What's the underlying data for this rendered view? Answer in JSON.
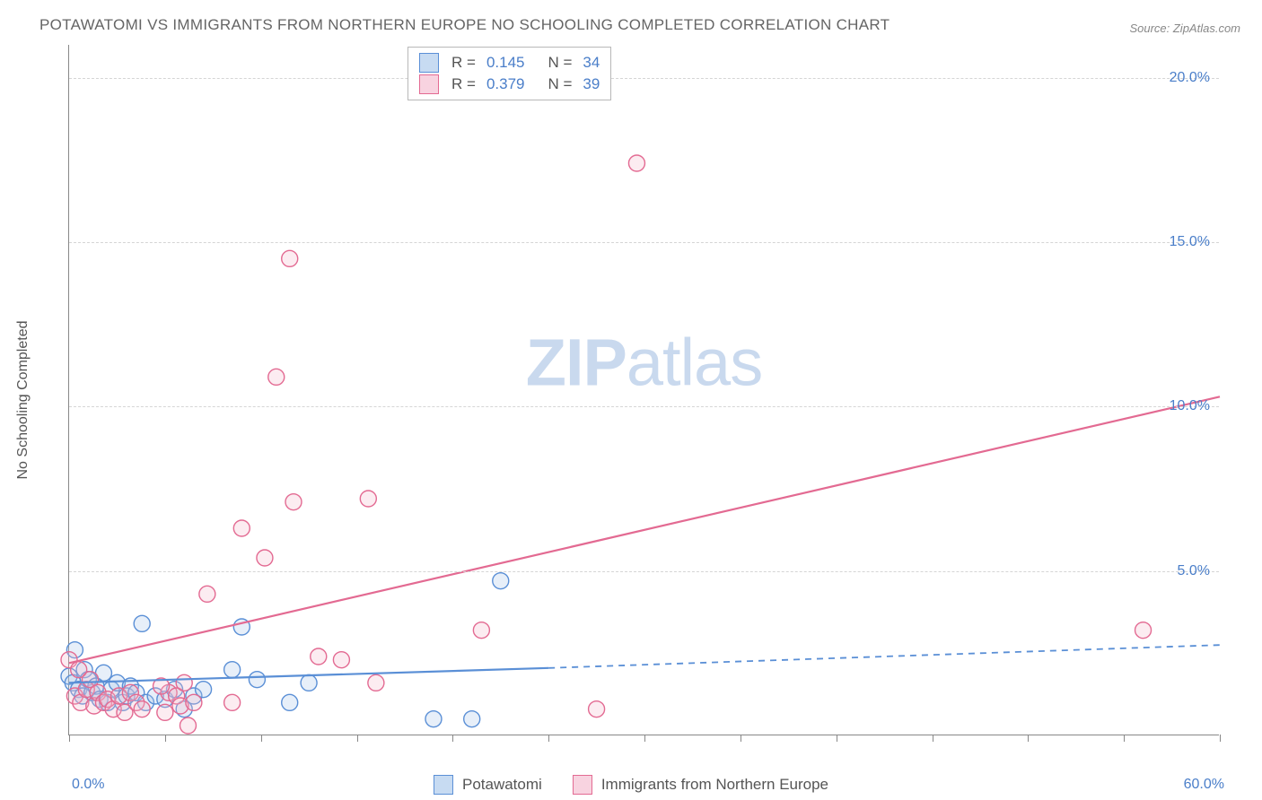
{
  "title": "POTAWATOMI VS IMMIGRANTS FROM NORTHERN EUROPE NO SCHOOLING COMPLETED CORRELATION CHART",
  "source": "Source: ZipAtlas.com",
  "watermark_zip": "ZIP",
  "watermark_atlas": "atlas",
  "y_axis_title": "No Schooling Completed",
  "chart": {
    "type": "scatter_with_trend",
    "xlim": [
      0,
      60
    ],
    "ylim": [
      0,
      21
    ],
    "x_ticks": [
      0,
      5,
      10,
      15,
      20,
      25,
      30,
      35,
      40,
      45,
      50,
      55,
      60
    ],
    "y_ticks": [
      5,
      10,
      15,
      20
    ],
    "y_tick_labels": [
      "5.0%",
      "10.0%",
      "15.0%",
      "20.0%"
    ],
    "x_start_label": "0.0%",
    "x_end_label": "60.0%",
    "background_color": "#ffffff",
    "grid_color": "#d5d5d5",
    "axis_color": "#888888",
    "tick_label_color": "#4a7ec9",
    "marker_radius": 9,
    "marker_stroke_width": 1.4,
    "marker_fill_opacity": 0.28,
    "trend_line_width": 2.2,
    "series": [
      {
        "name": "Potawatomi",
        "color_stroke": "#5a8fd6",
        "color_fill": "#a9c6ea",
        "R": "0.145",
        "N": "34",
        "trend": {
          "x1": 0,
          "y1": 1.6,
          "x2_solid": 25,
          "y2_solid": 2.05,
          "x2": 60,
          "y2": 2.75,
          "dashed_after_solid": true
        },
        "points": [
          [
            0.0,
            1.8
          ],
          [
            0.2,
            1.6
          ],
          [
            0.5,
            1.4
          ],
          [
            0.7,
            1.2
          ],
          [
            0.8,
            2.0
          ],
          [
            1.0,
            1.7
          ],
          [
            1.2,
            1.3
          ],
          [
            1.4,
            1.5
          ],
          [
            1.6,
            1.1
          ],
          [
            1.8,
            1.9
          ],
          [
            2.0,
            1.0
          ],
          [
            2.2,
            1.4
          ],
          [
            2.5,
            1.6
          ],
          [
            2.8,
            1.0
          ],
          [
            3.0,
            1.2
          ],
          [
            3.2,
            1.5
          ],
          [
            3.5,
            1.3
          ],
          [
            3.8,
            3.4
          ],
          [
            4.0,
            1.0
          ],
          [
            4.5,
            1.2
          ],
          [
            5.0,
            1.1
          ],
          [
            5.5,
            1.4
          ],
          [
            6.0,
            0.8
          ],
          [
            6.5,
            1.2
          ],
          [
            7.0,
            1.4
          ],
          [
            8.5,
            2.0
          ],
          [
            9.0,
            3.3
          ],
          [
            9.8,
            1.7
          ],
          [
            11.5,
            1.0
          ],
          [
            12.5,
            1.6
          ],
          [
            19.0,
            0.5
          ],
          [
            21.0,
            0.5
          ],
          [
            22.5,
            4.7
          ],
          [
            0.3,
            2.6
          ]
        ]
      },
      {
        "name": "Immigrants from Northern Europe",
        "color_stroke": "#e36a92",
        "color_fill": "#f4b9cd",
        "R": "0.379",
        "N": "39",
        "trend": {
          "x1": 0,
          "y1": 2.2,
          "x2_solid": 60,
          "y2_solid": 10.3,
          "x2": 60,
          "y2": 10.3,
          "dashed_after_solid": false
        },
        "points": [
          [
            0.0,
            2.3
          ],
          [
            0.3,
            1.2
          ],
          [
            0.6,
            1.0
          ],
          [
            0.9,
            1.4
          ],
          [
            1.1,
            1.7
          ],
          [
            1.3,
            0.9
          ],
          [
            1.5,
            1.3
          ],
          [
            1.8,
            1.0
          ],
          [
            2.0,
            1.1
          ],
          [
            2.3,
            0.8
          ],
          [
            2.6,
            1.2
          ],
          [
            2.9,
            0.7
          ],
          [
            3.2,
            1.3
          ],
          [
            3.5,
            1.0
          ],
          [
            5.0,
            0.7
          ],
          [
            5.2,
            1.3
          ],
          [
            5.6,
            1.2
          ],
          [
            5.8,
            0.9
          ],
          [
            6.0,
            1.6
          ],
          [
            6.5,
            1.0
          ],
          [
            6.2,
            0.3
          ],
          [
            7.2,
            4.3
          ],
          [
            8.5,
            1.0
          ],
          [
            9.0,
            6.3
          ],
          [
            10.2,
            5.4
          ],
          [
            10.8,
            10.9
          ],
          [
            11.5,
            14.5
          ],
          [
            11.7,
            7.1
          ],
          [
            13.0,
            2.4
          ],
          [
            14.2,
            2.3
          ],
          [
            15.6,
            7.2
          ],
          [
            16.0,
            1.6
          ],
          [
            21.5,
            3.2
          ],
          [
            27.5,
            0.8
          ],
          [
            29.6,
            17.4
          ],
          [
            56.0,
            3.2
          ],
          [
            4.8,
            1.5
          ],
          [
            3.8,
            0.8
          ],
          [
            0.5,
            2.0
          ]
        ]
      }
    ]
  },
  "legend_box": {
    "rows": [
      {
        "swatch_border": "#5a8fd6",
        "swatch_fill": "#c7dbf2",
        "R_label": "R =",
        "R": "0.145",
        "N_label": "N =",
        "N": "34"
      },
      {
        "swatch_border": "#e36a92",
        "swatch_fill": "#f8d3e0",
        "R_label": "R =",
        "R": "0.379",
        "N_label": "N =",
        "N": "39"
      }
    ]
  },
  "bottom_legend": [
    {
      "swatch_border": "#5a8fd6",
      "swatch_fill": "#c7dbf2",
      "label": "Potawatomi"
    },
    {
      "swatch_border": "#e36a92",
      "swatch_fill": "#f8d3e0",
      "label": "Immigrants from Northern Europe"
    }
  ]
}
